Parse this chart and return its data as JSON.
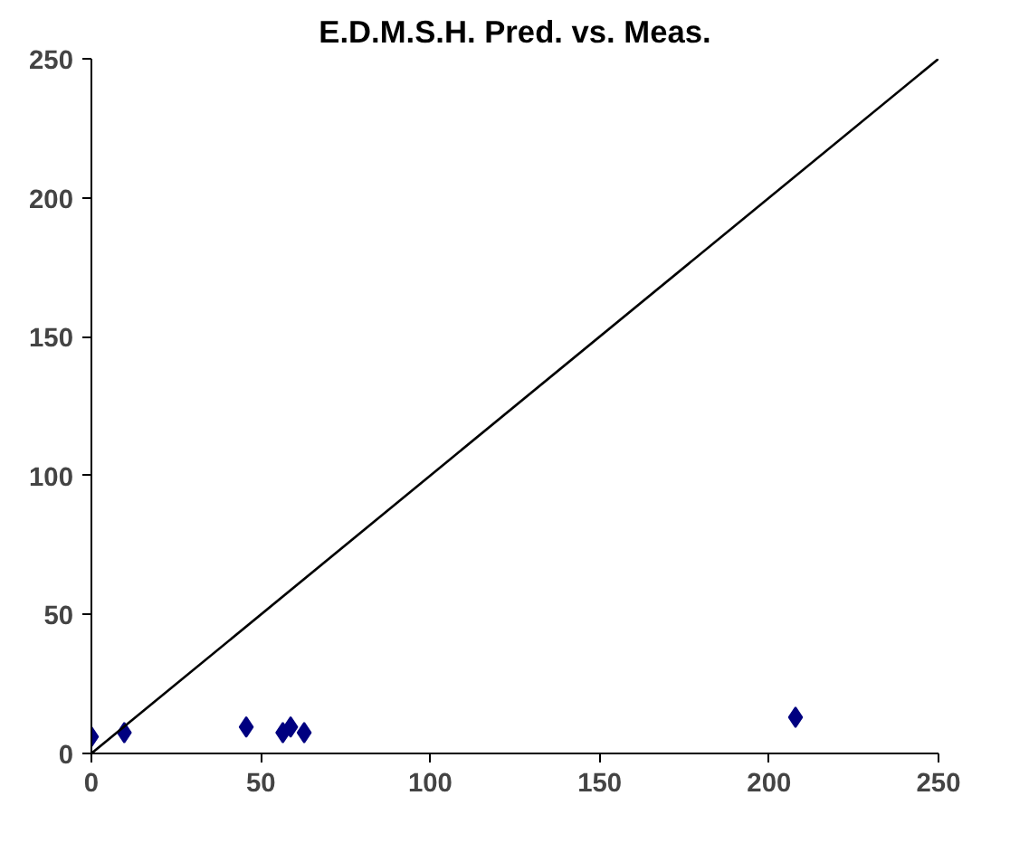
{
  "chart_data": {
    "type": "scatter",
    "title": "E.D.M.S.H. Pred. vs. Meas.",
    "series": [
      {
        "color": "#000080",
        "x": [
          0,
          9.7,
          45.7,
          56.5,
          58.8,
          62.8,
          207.8
        ],
        "values": [
          6,
          7.5,
          9.5,
          7.5,
          9.5,
          7.5,
          13
        ],
        "marker": "diamond"
      },
      {
        "type": "line",
        "color": "#000000",
        "x": [
          0,
          250
        ],
        "values": [
          0,
          250
        ],
        "marker": "none"
      }
    ],
    "xlim": [
      0,
      250
    ],
    "ylim": [
      0,
      250
    ],
    "xticks": [
      0,
      50,
      100,
      150,
      200,
      250
    ],
    "yticks": [
      0,
      50,
      100,
      150,
      200,
      250
    ],
    "grid": false
  }
}
